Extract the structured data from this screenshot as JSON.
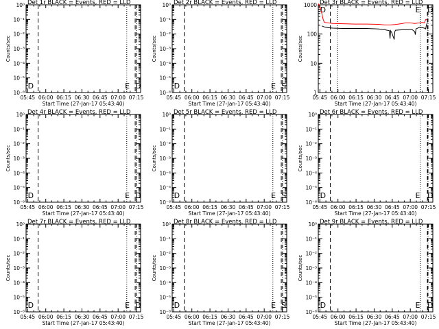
{
  "page": {
    "xlabel_template": "Start Time (27-Jan-17 05:43:40)",
    "ylabel": "Counts/sec",
    "x_ticks": [
      "05:45",
      "06:00",
      "06:15",
      "06:30",
      "06:45",
      "07:00",
      "07:15"
    ],
    "y_ticks_small": [
      "10⁰",
      "10⁻¹",
      "10⁻²",
      "10⁻³",
      "10⁻⁴",
      "10⁻⁵",
      "10⁻⁶"
    ],
    "y_ticks_det3": [
      "1000",
      "100",
      "10",
      "1"
    ],
    "colors": {
      "events": "#000000",
      "lld": "#ff0000"
    }
  },
  "chart_data": [
    {
      "type": "line",
      "title": "Det 1r BLACK = Events, RED = LLD",
      "x_range_minutes": [
        0,
        95
      ],
      "ylog": [
        -6,
        0
      ],
      "series": [],
      "vlines": {
        "dashed": [
          10,
          90.5
        ],
        "dotted": [
          83.5
        ],
        "dashdot": [
          91.5
        ]
      },
      "annotations": [
        {
          "text": "D",
          "x": 1.5
        },
        {
          "text": "E",
          "x": 82
        },
        {
          "text": "D",
          "x": 90.5
        }
      ]
    },
    {
      "type": "line",
      "title": "Det 2r BLACK = Events, RED = LLD",
      "x_range_minutes": [
        0,
        95
      ],
      "ylog": [
        -6,
        0
      ],
      "series": [],
      "vlines": {
        "dashed": [
          10,
          90.5
        ],
        "dotted": [
          83.5
        ],
        "dashdot": [
          91.5
        ]
      },
      "annotations": [
        {
          "text": "D",
          "x": 1.5
        },
        {
          "text": "E",
          "x": 82
        },
        {
          "text": "S",
          "x": 90.5
        }
      ]
    },
    {
      "type": "line",
      "title": "Det 3r BLACK = Events, RED = LLD",
      "x_range_minutes": [
        0,
        95
      ],
      "ylog": [
        0,
        3
      ],
      "series": [
        {
          "name": "LLD",
          "color": "#ff0000",
          "x": [
            0,
            3,
            4,
            5,
            8,
            12,
            20,
            30,
            40,
            50,
            55,
            60,
            65,
            70,
            72,
            74,
            76,
            78,
            80,
            82,
            84,
            86,
            88,
            89,
            90
          ],
          "y": [
            1100,
            500,
            320,
            250,
            240,
            230,
            225,
            220,
            220,
            215,
            205,
            205,
            215,
            230,
            240,
            240,
            240,
            235,
            230,
            235,
            240,
            250,
            240,
            310,
            320
          ]
        },
        {
          "name": "Events",
          "color": "#000000",
          "x": [
            3,
            5,
            8,
            12,
            20,
            30,
            40,
            50,
            55,
            59,
            59.5,
            60,
            61,
            63,
            63.5,
            64,
            70,
            74,
            76,
            78,
            80,
            80.5,
            81,
            84,
            88,
            89,
            90
          ],
          "y": [
            190,
            175,
            165,
            160,
            155,
            155,
            155,
            150,
            140,
            130,
            70,
            130,
            110,
            65,
            120,
            135,
            140,
            140,
            145,
            140,
            120,
            95,
            150,
            170,
            160,
            150,
            230
          ]
        }
      ],
      "vlines": {
        "dashed": [
          10,
          90.5
        ],
        "dotted": [
          16,
          84.5
        ],
        "dashdot": [
          91
        ]
      },
      "annotations": [
        {
          "text": "D",
          "x": 1.5
        },
        {
          "text": "E",
          "x": 80.5
        },
        {
          "text": "D",
          "x": 90.5
        }
      ]
    },
    {
      "type": "line",
      "title": "Det 4r BLACK = Events, RED = LLD",
      "x_range_minutes": [
        0,
        95
      ],
      "ylog": [
        -6,
        0
      ],
      "series": [],
      "vlines": {
        "dashed": [
          10,
          90.5
        ],
        "dotted": [
          83.5
        ],
        "dashdot": [
          91.5
        ]
      },
      "annotations": [
        {
          "text": "D",
          "x": 1.5
        },
        {
          "text": "E",
          "x": 82
        },
        {
          "text": "D",
          "x": 90.5
        }
      ]
    },
    {
      "type": "line",
      "title": "Det 5r BLACK = Events, RED = LLD",
      "x_range_minutes": [
        0,
        95
      ],
      "ylog": [
        -6,
        0
      ],
      "series": [],
      "vlines": {
        "dashed": [
          10,
          90.5
        ],
        "dotted": [
          83.5
        ],
        "dashdot": [
          91.5
        ]
      },
      "annotations": [
        {
          "text": "D",
          "x": 1.5
        },
        {
          "text": "E",
          "x": 82
        },
        {
          "text": "S",
          "x": 90.5
        }
      ]
    },
    {
      "type": "line",
      "title": "Det 6r BLACK = Events, RED = LLD",
      "x_range_minutes": [
        0,
        95
      ],
      "ylog": [
        -6,
        0
      ],
      "series": [],
      "vlines": {
        "dashed": [
          10,
          90.5
        ],
        "dotted": [
          84.5
        ],
        "dashdot": [
          91
        ]
      },
      "annotations": [
        {
          "text": "D",
          "x": 1.5
        },
        {
          "text": "E",
          "x": 80.5
        },
        {
          "text": "D",
          "x": 90.5
        }
      ]
    },
    {
      "type": "line",
      "title": "Det 7r BLACK = Events, RED = LLD",
      "x_range_minutes": [
        0,
        95
      ],
      "ylog": [
        -6,
        0
      ],
      "series": [],
      "vlines": {
        "dashed": [
          10,
          90.5
        ],
        "dotted": [
          83.5
        ],
        "dashdot": [
          91.5
        ]
      },
      "annotations": [
        {
          "text": "D",
          "x": 1.5
        },
        {
          "text": "E",
          "x": 82
        },
        {
          "text": "D",
          "x": 90.5
        }
      ]
    },
    {
      "type": "line",
      "title": "Det 8r BLACK = Events, RED = LLD",
      "x_range_minutes": [
        0,
        95
      ],
      "ylog": [
        -6,
        0
      ],
      "series": [],
      "vlines": {
        "dashed": [
          10,
          90.5
        ],
        "dotted": [
          83.5
        ],
        "dashdot": [
          91.5
        ]
      },
      "annotations": [
        {
          "text": "D",
          "x": 1.5
        },
        {
          "text": "E",
          "x": 82
        },
        {
          "text": "S",
          "x": 90.5
        }
      ]
    },
    {
      "type": "line",
      "title": "Det 9r BLACK = Events, RED = LLD",
      "x_range_minutes": [
        0,
        95
      ],
      "ylog": [
        -6,
        0
      ],
      "series": [],
      "vlines": {
        "dashed": [
          10,
          90.5
        ],
        "dotted": [
          84.5
        ],
        "dashdot": [
          91
        ]
      },
      "annotations": [
        {
          "text": "D",
          "x": 1.5
        },
        {
          "text": "E",
          "x": 80.5
        },
        {
          "text": "D",
          "x": 90.5
        }
      ]
    }
  ]
}
